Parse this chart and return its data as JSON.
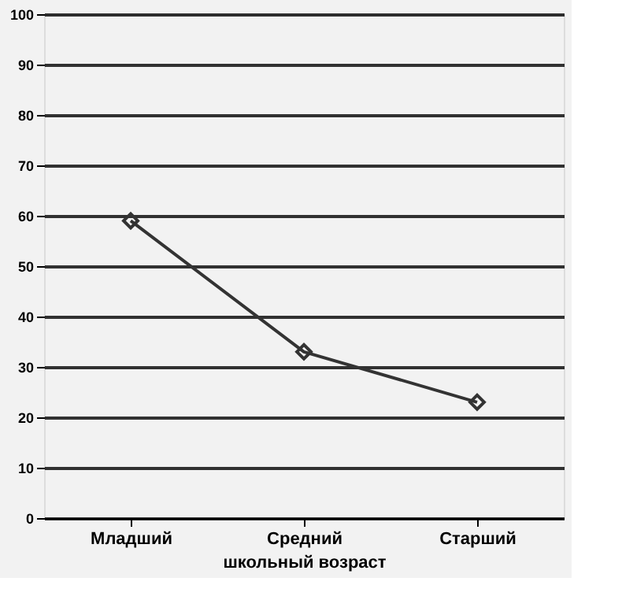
{
  "chart_data": {
    "type": "line",
    "xlabel": "школьный возраст",
    "categories": [
      "Младший",
      "Средний",
      "Старший"
    ],
    "series": [
      {
        "color": "#333333",
        "values": [
          59,
          33,
          23
        ]
      }
    ],
    "ylim": [
      0,
      100
    ],
    "yticks": [
      0,
      10,
      20,
      30,
      40,
      50,
      60,
      70,
      80,
      90,
      100
    ],
    "grid": "y",
    "marker": "diamond",
    "line_style": "solid"
  }
}
